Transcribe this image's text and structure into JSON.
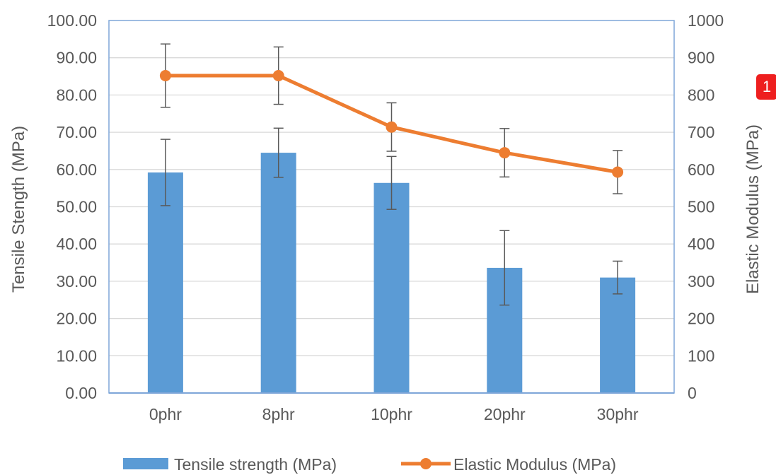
{
  "chart_data": {
    "type": "bar",
    "categories": [
      "0phr",
      "8phr",
      "10phr",
      "20phr",
      "30phr"
    ],
    "series": [
      {
        "name": "Tensile strength (MPa)",
        "type": "bar",
        "axis": "left",
        "values": [
          59.2,
          64.5,
          56.4,
          33.6,
          31.0
        ],
        "error": [
          8.9,
          6.6,
          7.1,
          10.0,
          4.4
        ]
      },
      {
        "name": "Elastic Modulus (MPa)",
        "type": "line",
        "axis": "right",
        "values": [
          852,
          852,
          714,
          645,
          593
        ],
        "error": [
          85,
          77,
          65,
          65,
          58
        ]
      }
    ],
    "ylabel_left": "Tensile Stength (MPa)",
    "ylabel_right": "Elastic Modulus (MPa)",
    "ylim_left": [
      0,
      100
    ],
    "ylim_right": [
      0,
      1000
    ],
    "yticks_left": [
      "0.00",
      "10.00",
      "20.00",
      "30.00",
      "40.00",
      "50.00",
      "60.00",
      "70.00",
      "80.00",
      "90.00",
      "100.00"
    ],
    "yticks_right": [
      "0",
      "100",
      "200",
      "300",
      "400",
      "500",
      "600",
      "700",
      "800",
      "900",
      "1000"
    ],
    "grid": true,
    "legend_position": "bottom",
    "colors": {
      "bar": "#5b9bd5",
      "line": "#ed7d31",
      "error": "#595959",
      "axis": "#7ea6d8",
      "grid": "#d9d9d9"
    }
  },
  "badge": {
    "label": "1",
    "color": "#ee1f1f"
  }
}
